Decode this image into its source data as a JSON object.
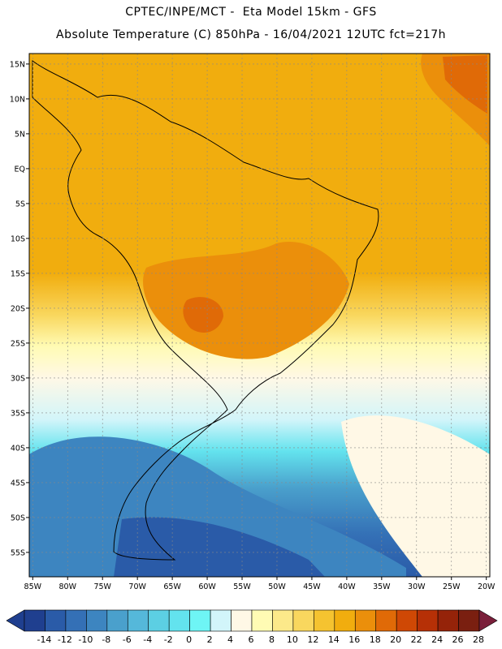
{
  "header": {
    "line1": "CPTEC/INPE/MCT -  Eta Model 15km - GFS",
    "line2": "Absolute Temperature (C) 850hPa - 16/04/2021 12UTC fct=217h"
  },
  "axes": {
    "lat_labels": [
      "15N",
      "10N",
      "5N",
      "EQ",
      "5S",
      "10S",
      "15S",
      "20S",
      "25S",
      "30S",
      "35S",
      "40S",
      "45S",
      "50S",
      "55S"
    ],
    "lat_values": [
      15,
      10,
      5,
      0,
      -5,
      -10,
      -15,
      -20,
      -25,
      -30,
      -35,
      -40,
      -45,
      -50,
      -55
    ],
    "lon_labels": [
      "85W",
      "80W",
      "75W",
      "70W",
      "65W",
      "60W",
      "55W",
      "50W",
      "45W",
      "40W",
      "35W",
      "30W",
      "25W",
      "20W"
    ],
    "lon_values": [
      -85,
      -80,
      -75,
      -70,
      -65,
      -60,
      -55,
      -50,
      -45,
      -40,
      -35,
      -30,
      -25,
      -20
    ],
    "lon_range": [
      -85.5,
      -19.5
    ],
    "lat_range": [
      -58.5,
      16.5
    ]
  },
  "colorbar": {
    "labels": [
      "-14",
      "-12",
      "-10",
      "-8",
      "-6",
      "-4",
      "-2",
      "0",
      "2",
      "4",
      "6",
      "8",
      "10",
      "12",
      "14",
      "16",
      "18",
      "20",
      "22",
      "24",
      "26",
      "28"
    ],
    "colors": [
      "#1f3f8f",
      "#2a5ba8",
      "#3470b6",
      "#3d85c0",
      "#4aa0cc",
      "#55b8da",
      "#5ccfe3",
      "#63e3ee",
      "#6ef5f5",
      "#d2f5fa",
      "#fff8e6",
      "#fffbb4",
      "#fce98a",
      "#f9d75e",
      "#f5c330",
      "#f1ad0e",
      "#eb8f0b",
      "#e06a07",
      "#cf4805",
      "#b63006",
      "#952309",
      "#7a1f10"
    ]
  }
}
